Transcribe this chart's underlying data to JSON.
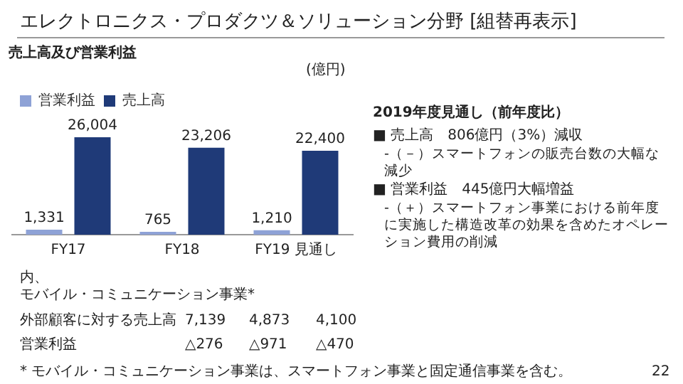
{
  "chart_data": {
    "type": "bar",
    "title": "エレクトロニクス・プロダクツ＆ソリューション分野 [組替再表示]",
    "subtitle": "売上高及び営業利益",
    "categories": [
      "FY17",
      "FY18",
      "FY19 見通し"
    ],
    "series": [
      {
        "name": "売上高",
        "color": "#1f3a78",
        "values": [
          26004,
          23206,
          22400
        ],
        "value_labels": [
          "26,004",
          "23,206",
          "22,400"
        ]
      },
      {
        "name": "営業利益",
        "color": "#8ea2d6",
        "values": [
          1331,
          765,
          1210
        ],
        "value_labels": [
          "1,331",
          "765",
          "1,210"
        ]
      }
    ],
    "legend": "top left",
    "grid": false,
    "annotations": [
      "(億円)",
      "2019年度見通し（前年度比）",
      "■ 売上高　806億円（3%）減収",
      "-（－）スマートフォンの販売台数の大幅な減少",
      "■ 営業利益　445億円大幅増益",
      "-（＋）スマートフォン事業における前年度に実施した構造改革の効果を含めたオペレーション費用の削減",
      "内、",
      "モバイル・コミュニケーション事業*",
      "外部顧客に対する売上高",
      "7,139",
      "4,873",
      "4,100",
      "営業利益",
      "△276",
      "△971",
      "△470",
      "* モバイル・コミュニケーション事業は、スマートフォン事業と固定通信事業を含む。",
      "22"
    ]
  }
}
